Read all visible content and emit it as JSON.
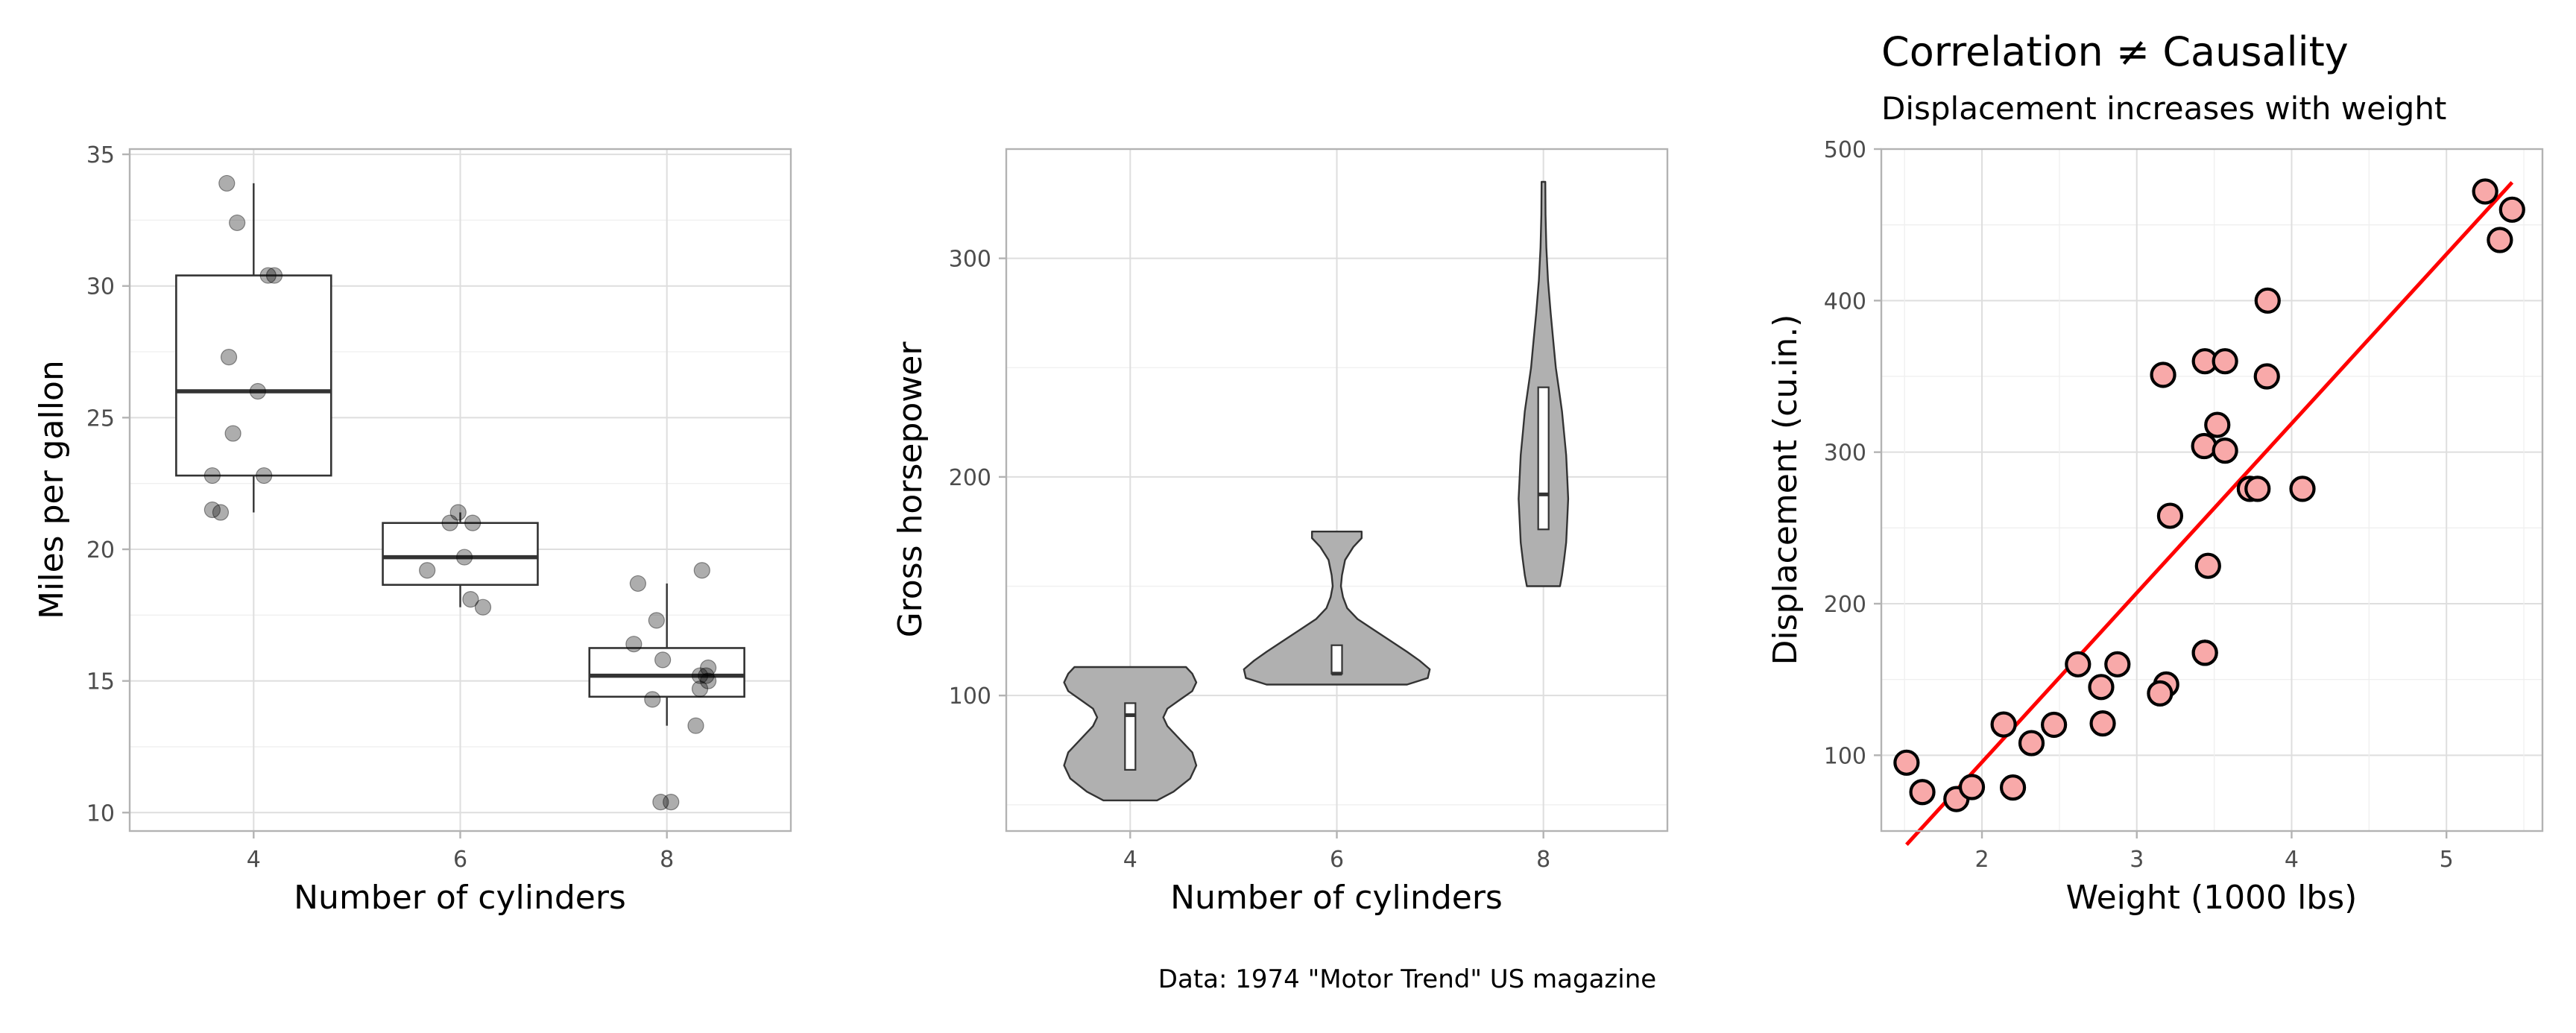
{
  "chart_data": [
    {
      "type": "boxplot",
      "xlabel": "Number of cylinders",
      "ylabel": "Miles per gallon",
      "categories": [
        "4",
        "6",
        "8"
      ],
      "ylim": [
        9.3,
        35.2
      ],
      "yticks": [
        10,
        15,
        20,
        25,
        30,
        35
      ],
      "grid": true,
      "boxes": [
        {
          "category": "4",
          "min": 21.4,
          "q1": 22.8,
          "median": 26.0,
          "q3": 30.4,
          "max": 33.9
        },
        {
          "category": "6",
          "min": 17.8,
          "q1": 18.65,
          "median": 19.7,
          "q3": 21.0,
          "max": 21.4
        },
        {
          "category": "8",
          "min": 13.3,
          "q1": 14.4,
          "median": 15.2,
          "q3": 16.25,
          "max": 18.7
        }
      ],
      "points": [
        {
          "x": "4",
          "jitter": -0.2,
          "y": 22.8
        },
        {
          "x": "4",
          "jitter": -0.1,
          "y": 24.4
        },
        {
          "x": "4",
          "jitter": 0.05,
          "y": 22.8
        },
        {
          "x": "4",
          "jitter": -0.08,
          "y": 32.4
        },
        {
          "x": "4",
          "jitter": 0.07,
          "y": 30.4
        },
        {
          "x": "4",
          "jitter": -0.13,
          "y": 33.9
        },
        {
          "x": "4",
          "jitter": -0.2,
          "y": 21.5
        },
        {
          "x": "4",
          "jitter": -0.12,
          "y": 27.3
        },
        {
          "x": "4",
          "jitter": 0.02,
          "y": 26.0
        },
        {
          "x": "4",
          "jitter": 0.1,
          "y": 30.4
        },
        {
          "x": "4",
          "jitter": -0.16,
          "y": 21.4
        },
        {
          "x": "6",
          "jitter": -0.05,
          "y": 21.0
        },
        {
          "x": "6",
          "jitter": 0.06,
          "y": 21.0
        },
        {
          "x": "6",
          "jitter": -0.01,
          "y": 21.4
        },
        {
          "x": "6",
          "jitter": 0.05,
          "y": 18.1
        },
        {
          "x": "6",
          "jitter": -0.16,
          "y": 19.2
        },
        {
          "x": "6",
          "jitter": 0.11,
          "y": 17.8
        },
        {
          "x": "6",
          "jitter": 0.02,
          "y": 19.7
        },
        {
          "x": "8",
          "jitter": -0.14,
          "y": 18.7
        },
        {
          "x": "8",
          "jitter": -0.07,
          "y": 14.3
        },
        {
          "x": "8",
          "jitter": -0.16,
          "y": 16.4
        },
        {
          "x": "8",
          "jitter": -0.05,
          "y": 17.3
        },
        {
          "x": "8",
          "jitter": 0.16,
          "y": 15.2
        },
        {
          "x": "8",
          "jitter": -0.03,
          "y": 10.4
        },
        {
          "x": "8",
          "jitter": 0.02,
          "y": 10.4
        },
        {
          "x": "8",
          "jitter": 0.16,
          "y": 14.7
        },
        {
          "x": "8",
          "jitter": 0.2,
          "y": 15.5
        },
        {
          "x": "8",
          "jitter": 0.19,
          "y": 15.2
        },
        {
          "x": "8",
          "jitter": 0.14,
          "y": 13.3
        },
        {
          "x": "8",
          "jitter": 0.17,
          "y": 19.2
        },
        {
          "x": "8",
          "jitter": -0.02,
          "y": 15.8
        },
        {
          "x": "8",
          "jitter": 0.2,
          "y": 15.0
        }
      ]
    },
    {
      "type": "violin",
      "xlabel": "Number of cylinders",
      "ylabel": "Gross horsepower",
      "categories": [
        "4",
        "6",
        "8"
      ],
      "ylim": [
        38,
        350
      ],
      "yticks": [
        100,
        200,
        300
      ],
      "grid": true,
      "violins": [
        {
          "category": "4",
          "min": 52,
          "max": 113,
          "profile": [
            [
              52,
              0.13
            ],
            [
              56,
              0.21
            ],
            [
              62,
              0.29
            ],
            [
              68,
              0.32
            ],
            [
              74,
              0.3
            ],
            [
              80,
              0.24
            ],
            [
              86,
              0.18
            ],
            [
              90,
              0.16
            ],
            [
              94,
              0.18
            ],
            [
              98,
              0.24
            ],
            [
              102,
              0.3
            ],
            [
              106,
              0.32
            ],
            [
              110,
              0.3
            ],
            [
              113,
              0.27
            ]
          ],
          "box": {
            "q1": 66,
            "median": 91,
            "q3": 96.5
          }
        },
        {
          "category": "6",
          "min": 105,
          "max": 175,
          "profile": [
            [
              105,
              0.34
            ],
            [
              108,
              0.44
            ],
            [
              112,
              0.45
            ],
            [
              116,
              0.4
            ],
            [
              120,
              0.34
            ],
            [
              125,
              0.26
            ],
            [
              130,
              0.18
            ],
            [
              135,
              0.1
            ],
            [
              140,
              0.05
            ],
            [
              145,
              0.03
            ],
            [
              150,
              0.02
            ],
            [
              155,
              0.025
            ],
            [
              162,
              0.04
            ],
            [
              168,
              0.08
            ],
            [
              172,
              0.12
            ],
            [
              175,
              0.12
            ]
          ],
          "box": {
            "q1": 110,
            "median": 110,
            "q3": 123
          }
        },
        {
          "category": "8",
          "min": 150,
          "max": 335,
          "profile": [
            [
              150,
              0.08
            ],
            [
              155,
              0.09
            ],
            [
              162,
              0.1
            ],
            [
              170,
              0.11
            ],
            [
              180,
              0.115
            ],
            [
              190,
              0.12
            ],
            [
              200,
              0.115
            ],
            [
              210,
              0.11
            ],
            [
              220,
              0.1
            ],
            [
              230,
              0.09
            ],
            [
              240,
              0.075
            ],
            [
              250,
              0.06
            ],
            [
              260,
              0.05
            ],
            [
              275,
              0.035
            ],
            [
              290,
              0.022
            ],
            [
              305,
              0.014
            ],
            [
              320,
              0.01
            ],
            [
              335,
              0.009
            ]
          ],
          "box": {
            "q1": 176,
            "median": 192,
            "q3": 241
          }
        }
      ]
    },
    {
      "type": "scatter",
      "title": "Correlation ≠ Causality",
      "subtitle": "Displacement increases with weight",
      "xlabel": "Weight (1000 lbs)",
      "ylabel": "Displacement (cu.in.)",
      "xlim": [
        1.35,
        5.62
      ],
      "ylim": [
        50,
        500
      ],
      "xticks": [
        2,
        3,
        4,
        5
      ],
      "yticks": [
        100,
        200,
        300,
        400,
        500
      ],
      "grid": true,
      "point_color": "#f8a9a9",
      "line_color": "#ff0000",
      "trend": {
        "x0": 1.513,
        "y0": 41.0,
        "x1": 5.424,
        "y1": 478.0
      },
      "points": [
        [
          2.62,
          160
        ],
        [
          2.875,
          160
        ],
        [
          2.32,
          108
        ],
        [
          3.215,
          258
        ],
        [
          3.44,
          360
        ],
        [
          3.46,
          225
        ],
        [
          3.57,
          360
        ],
        [
          3.19,
          146.7
        ],
        [
          3.15,
          140.8
        ],
        [
          3.44,
          167.6
        ],
        [
          3.44,
          167.6
        ],
        [
          4.07,
          275.8
        ],
        [
          3.73,
          275.8
        ],
        [
          3.78,
          275.8
        ],
        [
          5.25,
          472
        ],
        [
          5.424,
          460
        ],
        [
          5.345,
          440
        ],
        [
          2.2,
          78.7
        ],
        [
          1.615,
          75.7
        ],
        [
          1.835,
          71.1
        ],
        [
          2.465,
          120.1
        ],
        [
          3.52,
          318
        ],
        [
          3.435,
          304
        ],
        [
          3.84,
          350
        ],
        [
          3.845,
          400
        ],
        [
          1.935,
          79
        ],
        [
          2.14,
          120.3
        ],
        [
          1.513,
          95.1
        ],
        [
          3.17,
          351
        ],
        [
          2.77,
          145
        ],
        [
          3.57,
          301
        ],
        [
          2.78,
          121
        ]
      ]
    }
  ],
  "caption": "Data: 1974 \"Motor Trend\" US magazine"
}
